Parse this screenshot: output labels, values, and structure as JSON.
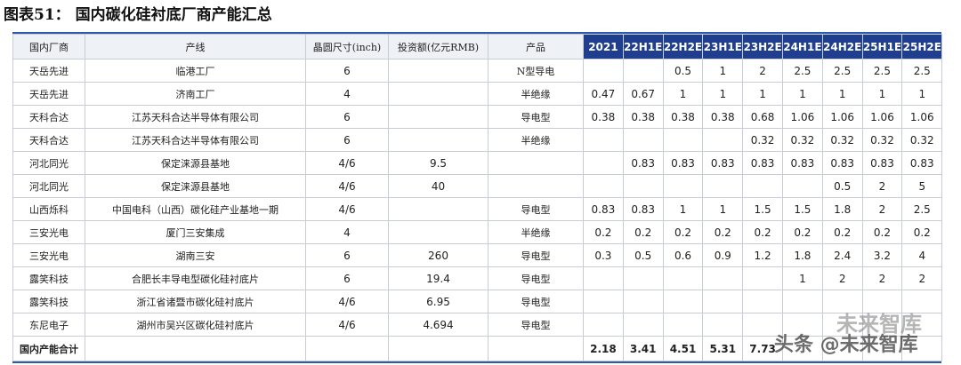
{
  "header": {
    "title": "图表51：  国内碳化硅衬底厂商产能汇总"
  },
  "table": {
    "columns": [
      "国内厂商",
      "产线",
      "晶圆尺寸(inch)",
      "投资额(亿元RMB)",
      "产品",
      "2021",
      "22H1E",
      "22H2E",
      "23H1E",
      "23H2E",
      "24H1E",
      "24H2E",
      "25H1E",
      "25H2E"
    ],
    "rows": [
      [
        "天岳先进",
        "临港工厂",
        "6",
        null,
        "N型导电",
        null,
        null,
        "0.5",
        "1",
        "2",
        "2.5",
        "2.5",
        "2.5",
        "2.5"
      ],
      [
        "天岳先进",
        "济南工厂",
        "4",
        null,
        "半绝缘",
        "0.47",
        "0.67",
        "1",
        "1",
        "1",
        "1",
        "1",
        "1",
        "1"
      ],
      [
        "天科合达",
        "江苏天科合达半导体有限公司",
        "6",
        null,
        "导电型",
        "0.38",
        "0.38",
        "0.38",
        "0.38",
        "0.68",
        "1.06",
        "1.06",
        "1.06",
        "1.06"
      ],
      [
        "天科合达",
        "江苏天科合达半导体有限公司",
        "6",
        null,
        "半绝缘",
        null,
        null,
        null,
        null,
        "0.32",
        "0.32",
        "0.32",
        "0.32",
        "0.32"
      ],
      [
        "河北同光",
        "保定涞源县基地",
        "4/6",
        "9.5",
        null,
        null,
        "0.83",
        "0.83",
        "0.83",
        "0.83",
        "0.83",
        "0.83",
        "0.83",
        "0.83"
      ],
      [
        "河北同光",
        "保定涞源县基地",
        "4/6",
        "40",
        null,
        null,
        null,
        null,
        null,
        null,
        null,
        "0.5",
        "2",
        "5"
      ],
      [
        "山西烁科",
        "中国电科（山西）碳化硅产业基地一期",
        "4/6",
        null,
        "导电型",
        "0.83",
        "0.83",
        "1",
        "1",
        "1.5",
        "1.5",
        "1.8",
        "2",
        "2.5"
      ],
      [
        "三安光电",
        "厦门三安集成",
        "4",
        null,
        "半绝缘",
        "0.2",
        "0.2",
        "0.2",
        "0.2",
        "0.2",
        "0.2",
        "0.2",
        "0.2",
        "0.2"
      ],
      [
        "三安光电",
        "湖南三安",
        "6",
        "260",
        "导电型",
        "0.3",
        "0.5",
        "0.6",
        "0.9",
        "1.2",
        "1.8",
        "2.4",
        "3.2",
        "4"
      ],
      [
        "露笑科技",
        "合肥长丰导电型碳化硅衬底片",
        "6",
        "19.4",
        "导电型",
        null,
        null,
        null,
        null,
        null,
        "1",
        "2",
        "2",
        "2"
      ],
      [
        "露笑科技",
        "浙江省诸暨市碳化硅衬底片",
        "4/6",
        "6.95",
        "导电型",
        null,
        null,
        null,
        null,
        null,
        null,
        null,
        null,
        null
      ],
      [
        "东尼电子",
        "湖州市吴兴区碳化硅衬底片",
        "4/6",
        "4.694",
        "导电型",
        null,
        null,
        null,
        null,
        null,
        null,
        null,
        null,
        null
      ]
    ],
    "total": [
      "国内产能合计",
      null,
      null,
      null,
      null,
      "2.18",
      "3.41",
      "4.51",
      "5.31",
      "7.73",
      null,
      null,
      null,
      null
    ]
  },
  "watermark": {
    "logo": "未来智库",
    "text": "头条 @未来智库"
  }
}
